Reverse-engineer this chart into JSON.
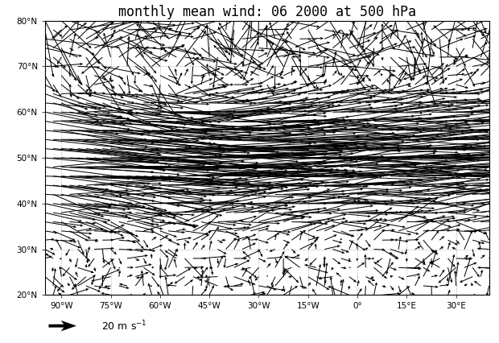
{
  "title": "monthly mean wind: 06 2000 at 500 hPa",
  "lon_min": -95,
  "lon_max": 40,
  "lat_min": 20,
  "lat_max": 80,
  "xticks": [
    -90,
    -75,
    -60,
    -45,
    -30,
    -15,
    0,
    15,
    30
  ],
  "yticks": [
    20,
    30,
    40,
    50,
    60,
    70,
    80
  ],
  "grid_color": "#888888",
  "grid_linestyle": ":",
  "grid_linewidth": 0.5,
  "coastline_color": "black",
  "coastline_linewidth": 0.7,
  "background_color": "white",
  "title_fontsize": 12,
  "tick_fontsize": 7.5,
  "arrow_color": "black",
  "quiver_lon_step": 2.5,
  "quiver_lat_step": 2.0,
  "reference_arrow_ms": 20
}
